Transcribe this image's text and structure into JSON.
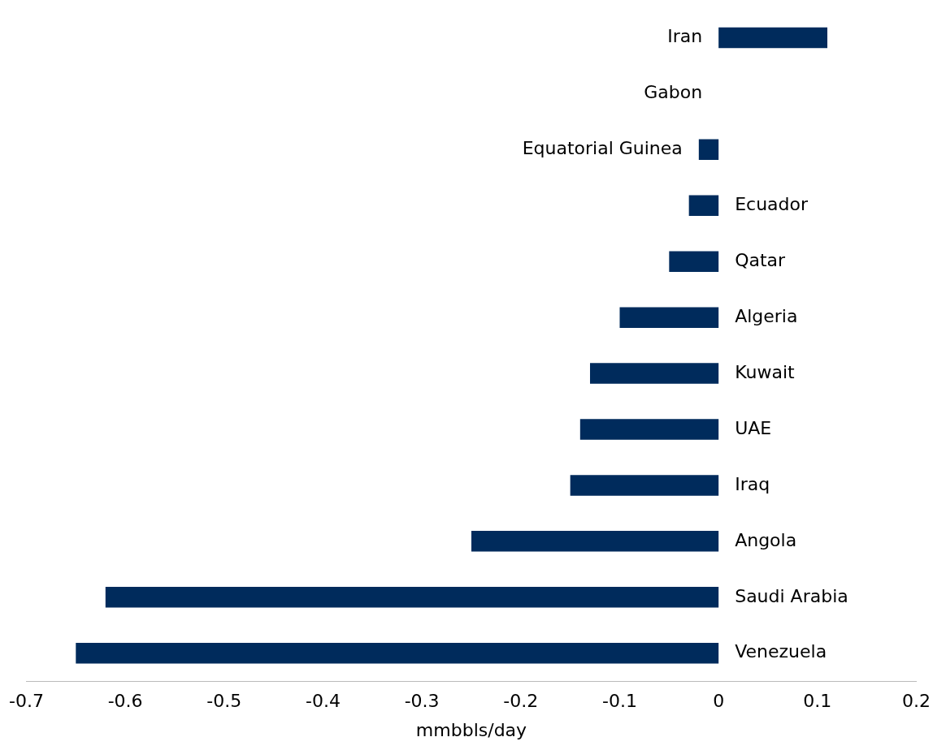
{
  "chart_data": {
    "type": "bar",
    "orientation": "horizontal",
    "xlabel": "mmbbls/day",
    "categories": [
      "Iran",
      "Gabon",
      "Equatorial Guinea",
      "Ecuador",
      "Qatar",
      "Algeria",
      "Kuwait",
      "UAE",
      "Iraq",
      "Angola",
      "Saudi Arabia",
      "Venezuela"
    ],
    "values": [
      0.11,
      0,
      -0.02,
      -0.03,
      -0.05,
      -0.1,
      -0.13,
      -0.14,
      -0.15,
      -0.25,
      -0.62,
      -0.65
    ],
    "color": "#002b5c",
    "xlim": [
      -0.7,
      0.2
    ],
    "xticks": [
      -0.7,
      -0.6,
      -0.5,
      -0.4,
      -0.3,
      -0.2,
      -0.1,
      0,
      0.1,
      0.2
    ]
  }
}
